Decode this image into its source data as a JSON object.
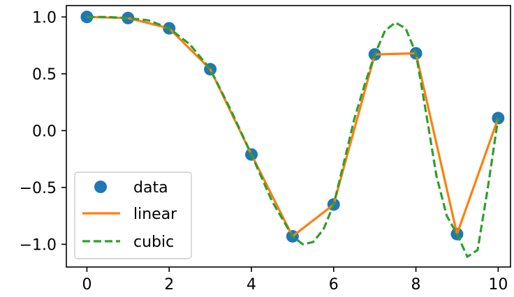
{
  "chart_data": {
    "type": "line",
    "title": "",
    "xlabel": "",
    "ylabel": "",
    "xlim": [
      -0.5,
      10.3
    ],
    "ylim": [
      -1.2,
      1.1
    ],
    "xticks": [
      0,
      2,
      4,
      6,
      8,
      10
    ],
    "xtick_labels": [
      "0",
      "2",
      "4",
      "6",
      "8",
      "10"
    ],
    "yticks": [
      1.0,
      0.5,
      0.0,
      -0.5,
      -1.0
    ],
    "ytick_labels": [
      "1.0",
      "0.5",
      "0.0",
      "−0.5",
      "−1.0"
    ],
    "grid": false,
    "legend_position": "lower-left",
    "series": [
      {
        "name": "data",
        "style": "markers",
        "color": "#1f77b4",
        "x": [
          0,
          1,
          2,
          3,
          4,
          5,
          6,
          7,
          8,
          9,
          10
        ],
        "y": [
          1.0,
          0.99,
          0.9,
          0.54,
          -0.21,
          -0.93,
          -0.65,
          0.67,
          0.68,
          -0.91,
          0.11
        ]
      },
      {
        "name": "linear",
        "style": "solid",
        "color": "#ff7f0e",
        "x": [
          0,
          1,
          2,
          3,
          4,
          5,
          6,
          7,
          8,
          9,
          10
        ],
        "y": [
          1.0,
          0.99,
          0.9,
          0.54,
          -0.21,
          -0.93,
          -0.65,
          0.67,
          0.68,
          -0.91,
          0.11
        ]
      },
      {
        "name": "cubic",
        "style": "dashed",
        "color": "#2ca02c",
        "x": [
          0,
          0.5,
          1,
          1.5,
          2,
          2.5,
          3,
          3.5,
          4,
          4.5,
          5,
          5.25,
          5.5,
          5.75,
          6,
          6.25,
          6.5,
          6.75,
          7,
          7.25,
          7.5,
          7.75,
          8,
          8.25,
          8.5,
          8.75,
          9,
          9.25,
          9.5,
          9.75,
          10
        ],
        "y": [
          1.0,
          1.0,
          0.99,
          0.97,
          0.9,
          0.76,
          0.54,
          0.18,
          -0.21,
          -0.62,
          -0.93,
          -1.0,
          -0.98,
          -0.87,
          -0.65,
          -0.28,
          0.1,
          0.4,
          0.67,
          0.88,
          0.95,
          0.9,
          0.68,
          0.15,
          -0.4,
          -0.75,
          -0.91,
          -1.11,
          -1.05,
          -0.5,
          0.11
        ]
      }
    ]
  }
}
